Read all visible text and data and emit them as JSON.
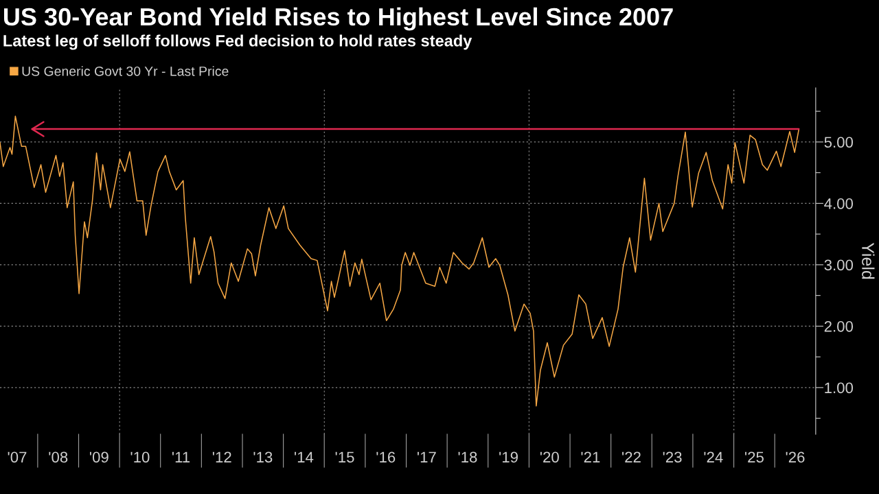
{
  "chart_data": {
    "type": "line",
    "title": "US 30-Year Bond Yield Rises to Highest Level Since 2007",
    "subtitle": "Latest leg of selloff follows Fed decision to hold rates steady",
    "ylabel": "Yield",
    "series": [
      {
        "name": "US Generic Govt 30 Yr - Last Price",
        "color": "#f7a845",
        "x": [
          "2007-01-30",
          "2007-02-28",
          "2007-04-29",
          "2007-05-17",
          "2007-06-16",
          "2007-08-10",
          "2007-09-16",
          "2007-12-01",
          "2008-01-30",
          "2008-03-12",
          "2008-06-12",
          "2008-07-15",
          "2008-08-14",
          "2008-09-20",
          "2008-11-14",
          "2008-12-01",
          "2009-01-04",
          "2009-02-21",
          "2009-03-20",
          "2009-05-03",
          "2009-06-09",
          "2009-07-15",
          "2009-08-03",
          "2009-10-11",
          "2010-01-04",
          "2010-02-17",
          "2010-04-01",
          "2010-06-05",
          "2010-07-26",
          "2010-08-25",
          "2010-10-08",
          "2010-12-09",
          "2011-02-14",
          "2011-03-20",
          "2011-05-21",
          "2011-07-22",
          "2011-08-10",
          "2011-09-27",
          "2011-10-29",
          "2011-12-09",
          "2012-03-23",
          "2012-04-22",
          "2012-05-28",
          "2012-07-29",
          "2012-09-23",
          "2012-11-25",
          "2013-02-14",
          "2013-03-23",
          "2013-04-26",
          "2013-06-12",
          "2013-08-25",
          "2013-10-26",
          "2014-01-04",
          "2014-02-14",
          "2014-05-28",
          "2014-09-05",
          "2014-10-29",
          "2015-01-30",
          "2015-03-05",
          "2015-04-01",
          "2015-07-01",
          "2015-08-17",
          "2015-10-01",
          "2015-11-07",
          "2015-12-01",
          "2016-02-21",
          "2016-05-10",
          "2016-07-08",
          "2016-09-09",
          "2016-11-10",
          "2016-11-21",
          "2016-12-23",
          "2017-02-03",
          "2017-03-09",
          "2017-06-23",
          "2017-09-13",
          "2017-10-26",
          "2017-12-23",
          "2018-02-25",
          "2018-05-14",
          "2018-07-15",
          "2018-08-25",
          "2018-11-10",
          "2019-01-08",
          "2019-03-09",
          "2019-04-15",
          "2019-06-27",
          "2019-08-28",
          "2019-11-17",
          "2020-01-11",
          "2020-02-10",
          "2020-03-05",
          "2020-04-11",
          "2020-06-12",
          "2020-08-14",
          "2020-11-03",
          "2021-01-19",
          "2021-03-20",
          "2021-05-21",
          "2021-07-22",
          "2021-10-15",
          "2021-12-16",
          "2022-03-05",
          "2022-04-19",
          "2022-06-16",
          "2022-08-07",
          "2022-10-26",
          "2022-12-20",
          "2023-03-05",
          "2023-04-08",
          "2023-07-19",
          "2023-08-21",
          "2023-10-26",
          "2023-12-27",
          "2024-02-21",
          "2024-04-29",
          "2024-06-23",
          "2024-09-23",
          "2024-11-10",
          "2024-12-13",
          "2025-01-11",
          "2025-04-01",
          "2025-05-25",
          "2025-07-12",
          "2025-09-13",
          "2025-10-26",
          "2026-01-15",
          "2026-02-25",
          "2026-05-14",
          "2026-06-27",
          "2026-08-03"
        ],
        "values": [
          4.99,
          4.6,
          4.91,
          4.8,
          5.42,
          4.93,
          4.93,
          4.26,
          4.63,
          4.18,
          4.78,
          4.44,
          4.66,
          3.93,
          4.35,
          3.48,
          2.53,
          3.7,
          3.44,
          4.04,
          4.82,
          4.22,
          4.63,
          3.93,
          4.72,
          4.52,
          4.84,
          4.04,
          4.04,
          3.48,
          3.96,
          4.52,
          4.78,
          4.52,
          4.22,
          4.37,
          3.77,
          2.7,
          3.44,
          2.84,
          3.46,
          3.21,
          2.7,
          2.45,
          3.03,
          2.73,
          3.26,
          3.18,
          2.82,
          3.32,
          3.93,
          3.59,
          3.96,
          3.59,
          3.32,
          3.1,
          3.07,
          2.25,
          2.73,
          2.47,
          3.23,
          2.65,
          3.03,
          2.84,
          3.09,
          2.43,
          2.7,
          2.09,
          2.28,
          2.59,
          2.99,
          3.2,
          2.99,
          3.2,
          2.7,
          2.65,
          2.96,
          2.7,
          3.2,
          3.03,
          2.93,
          3.03,
          3.44,
          2.96,
          3.1,
          2.99,
          2.51,
          1.92,
          2.36,
          2.21,
          1.92,
          0.7,
          1.28,
          1.73,
          1.17,
          1.69,
          1.87,
          2.51,
          2.36,
          1.8,
          2.14,
          1.67,
          2.28,
          2.96,
          3.44,
          2.88,
          4.41,
          3.4,
          4.0,
          3.54,
          4.0,
          4.44,
          5.16,
          3.94,
          4.49,
          4.83,
          4.37,
          3.91,
          4.63,
          4.33,
          4.99,
          4.33,
          5.11,
          5.04,
          4.63,
          4.54,
          4.85,
          4.6,
          5.17,
          4.83,
          5.2
        ]
      },
      {
        "type": "line",
        "color": "#e0284f",
        "x": [
          "2007-10-29",
          "2026-08-03"
        ],
        "values": [
          5.21,
          5.21
        ]
      }
    ],
    "xlim": [
      "2007-01-30",
      "2027-01-01"
    ],
    "xticks": [
      {
        "value": "2007-07-02",
        "label": "'07"
      },
      {
        "value": "2008-07-02",
        "label": "'08"
      },
      {
        "value": "2009-07-02",
        "label": "'09"
      },
      {
        "value": "2010-07-02",
        "label": "'10"
      },
      {
        "value": "2011-07-02",
        "label": "'11"
      },
      {
        "value": "2012-07-02",
        "label": "'12"
      },
      {
        "value": "2013-07-02",
        "label": "'13"
      },
      {
        "value": "2014-07-02",
        "label": "'14"
      },
      {
        "value": "2015-07-02",
        "label": "'15"
      },
      {
        "value": "2016-07-02",
        "label": "'16"
      },
      {
        "value": "2017-07-02",
        "label": "'17"
      },
      {
        "value": "2018-07-02",
        "label": "'18"
      },
      {
        "value": "2019-07-02",
        "label": "'19"
      },
      {
        "value": "2020-07-02",
        "label": "'20"
      },
      {
        "value": "2021-07-02",
        "label": "'21"
      },
      {
        "value": "2022-07-02",
        "label": "'22"
      },
      {
        "value": "2023-07-02",
        "label": "'23"
      },
      {
        "value": "2024-07-02",
        "label": "'24"
      },
      {
        "value": "2025-07-02",
        "label": "'25"
      },
      {
        "value": "2026-07-02",
        "label": "'26"
      }
    ],
    "ylim": [
      0.24,
      5.88
    ],
    "yticks": [
      {
        "value": 0.5,
        "label": null
      },
      {
        "value": 1,
        "label": "1.00"
      },
      {
        "value": 1.5,
        "label": null
      },
      {
        "value": 2,
        "label": "2.00"
      },
      {
        "value": 2.5,
        "label": null
      },
      {
        "value": 3,
        "label": "3.00"
      },
      {
        "value": 3.5,
        "label": null
      },
      {
        "value": 4,
        "label": "4.00"
      },
      {
        "value": 4.5,
        "label": null
      },
      {
        "value": 5,
        "label": "5.00"
      },
      {
        "value": 5.5,
        "label": null
      }
    ],
    "grid": "y",
    "ref_lines": [
      {
        "axis": "x",
        "value": "2010-01-01",
        "color": "#8a8a8a",
        "line_style": "dotted"
      },
      {
        "axis": "x",
        "value": "2015-01-01",
        "color": "#8a8a8a",
        "line_style": "dotted"
      },
      {
        "axis": "x",
        "value": "2020-01-01",
        "color": "#8a8a8a",
        "line_style": "dotted"
      },
      {
        "axis": "x",
        "value": "2025-01-01",
        "color": "#8a8a8a",
        "line_style": "dotted"
      }
    ],
    "legend": "top left",
    "marker": "none",
    "line_style": "solid"
  }
}
